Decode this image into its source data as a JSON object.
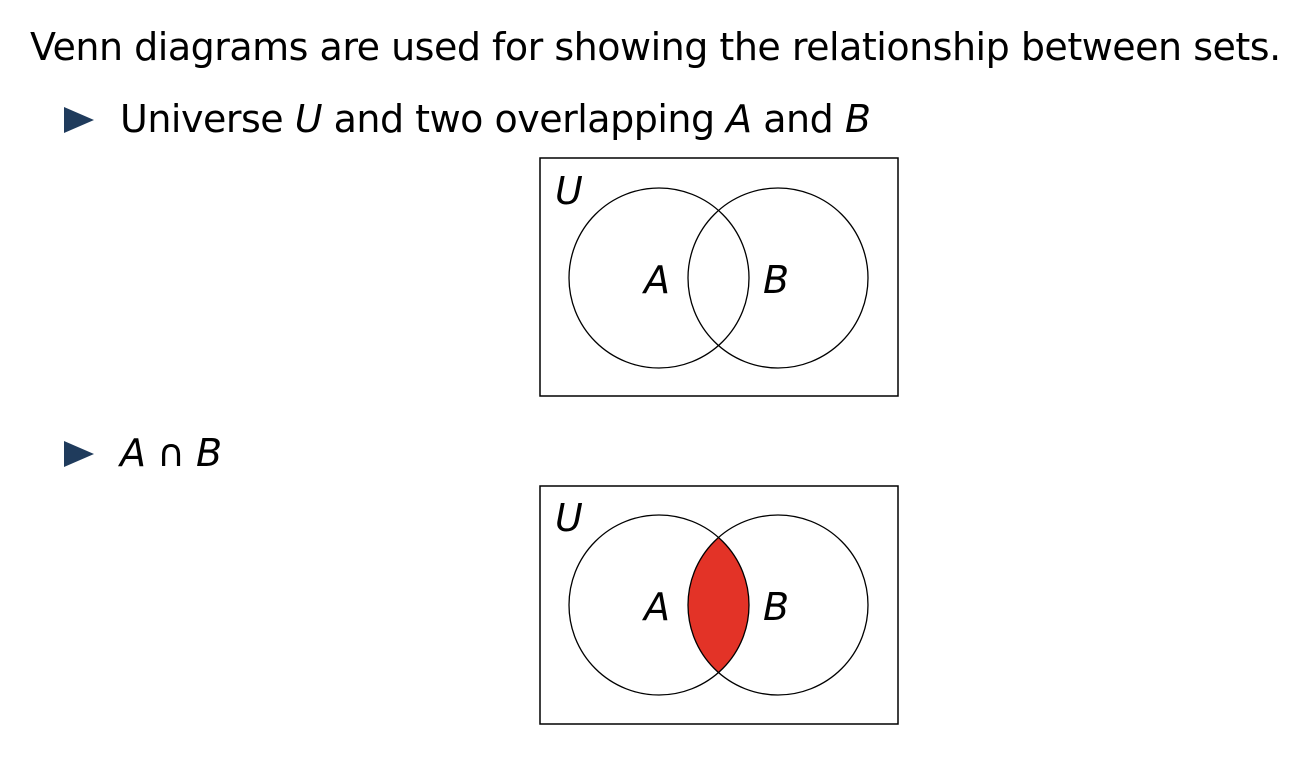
{
  "intro": "Venn diagrams are used for showing the relationship between sets.",
  "bullets": [
    {
      "parts": [
        "Universe ",
        "U",
        " and two overlapping ",
        "A",
        " and ",
        "B"
      ]
    },
    {
      "expression": [
        "A",
        " ∩ ",
        "B"
      ]
    }
  ],
  "diagrams": [
    {
      "universe_label": "U",
      "set_a_label": "A",
      "set_b_label": "B",
      "highlight": "none"
    },
    {
      "universe_label": "U",
      "set_a_label": "A",
      "set_b_label": "B",
      "highlight": "intersection",
      "highlight_color": "#e33327"
    }
  ],
  "colors": {
    "bullet_marker": "#1f3b5c",
    "stroke": "#000000"
  }
}
